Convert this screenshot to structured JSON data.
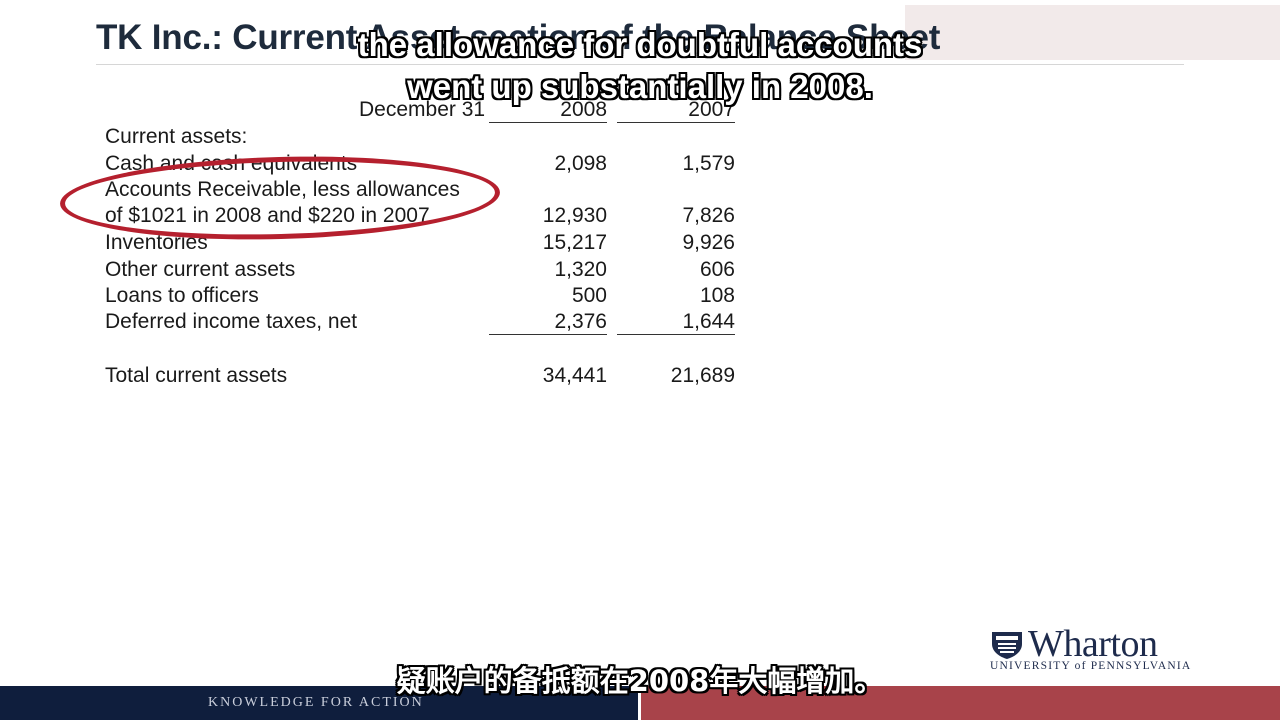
{
  "slide": {
    "title": "TK Inc.: Current Asset section of the Balance Sheet",
    "header": {
      "date_label": "December 31",
      "col_2008": "2008",
      "col_2007": "2007"
    },
    "rows": [
      {
        "label": "Current assets:",
        "v2008": "",
        "v2007": ""
      },
      {
        "label": "Cash and cash equivalents",
        "v2008": "2,098",
        "v2007": "1,579"
      },
      {
        "label": "Accounts Receivable, less allowances",
        "v2008": "",
        "v2007": ""
      },
      {
        "label": "of $1021 in 2008 and $220 in 2007",
        "v2008": "12,930",
        "v2007": "7,826"
      },
      {
        "label": "Inventories",
        "v2008": "15,217",
        "v2007": "9,926"
      },
      {
        "label": "Other current assets",
        "v2008": "1,320",
        "v2007": "606"
      },
      {
        "label": "Loans to officers",
        "v2008": "500",
        "v2007": "108"
      },
      {
        "label": "Deferred income taxes, net",
        "v2008": "2,376",
        "v2007": "1,644"
      }
    ],
    "total": {
      "label": "Total current assets",
      "v2008": "34,441",
      "v2007": "21,689"
    }
  },
  "subtitles": {
    "english_line1": "the allowance for doubtful accounts",
    "english_line2": "went up substantially in 2008.",
    "chinese": "疑账户的备抵额在2008年大幅增加。"
  },
  "branding": {
    "logo_name": "Wharton",
    "logo_subtitle": "UNIVERSITY of PENNSYLVANIA",
    "tagline": "KNOWLEDGE FOR ACTION"
  },
  "colors": {
    "title": "#1e2b3c",
    "highlight_ellipse": "#b5202e",
    "footer_navy": "#0f1e3d",
    "footer_red": "#a8434a"
  }
}
